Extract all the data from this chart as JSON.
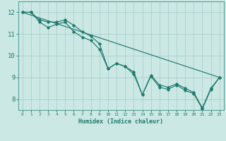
{
  "xlabel": "Humidex (Indice chaleur)",
  "background_color": "#cce8e5",
  "grid_color": "#aad0cc",
  "line_color": "#1f7a6e",
  "spine_color": "#4a9990",
  "xlim": [
    -0.5,
    23.5
  ],
  "ylim": [
    7.5,
    12.5
  ],
  "xticks": [
    0,
    1,
    2,
    3,
    4,
    5,
    6,
    7,
    8,
    9,
    10,
    11,
    12,
    13,
    14,
    15,
    16,
    17,
    18,
    19,
    20,
    21,
    22,
    23
  ],
  "yticks": [
    8,
    9,
    10,
    11,
    12
  ],
  "series1": {
    "x": [
      0,
      1,
      2,
      3,
      4,
      5,
      6,
      7,
      8,
      9,
      10,
      11,
      12,
      13,
      14,
      15,
      16,
      17,
      18,
      19,
      20,
      21,
      22,
      23
    ],
    "y": [
      12.0,
      12.0,
      11.65,
      11.55,
      11.55,
      11.65,
      11.4,
      11.1,
      10.9,
      10.55,
      9.4,
      9.65,
      9.5,
      9.25,
      8.2,
      9.1,
      8.65,
      8.55,
      8.7,
      8.5,
      8.3,
      7.6,
      8.5,
      9.0
    ]
  },
  "series2": {
    "x": [
      0,
      1,
      2,
      3,
      4,
      5,
      6,
      7,
      8,
      9,
      10,
      11,
      12,
      13,
      14,
      15,
      16,
      17,
      18,
      19,
      20,
      21,
      22,
      23
    ],
    "y": [
      12.0,
      12.0,
      11.55,
      11.3,
      11.45,
      11.55,
      11.1,
      10.85,
      10.7,
      10.3,
      9.4,
      9.65,
      9.5,
      9.15,
      8.2,
      9.05,
      8.55,
      8.45,
      8.65,
      8.4,
      8.25,
      7.55,
      8.45,
      9.0
    ]
  },
  "series3": {
    "x": [
      0,
      23
    ],
    "y": [
      12.0,
      9.0
    ]
  }
}
